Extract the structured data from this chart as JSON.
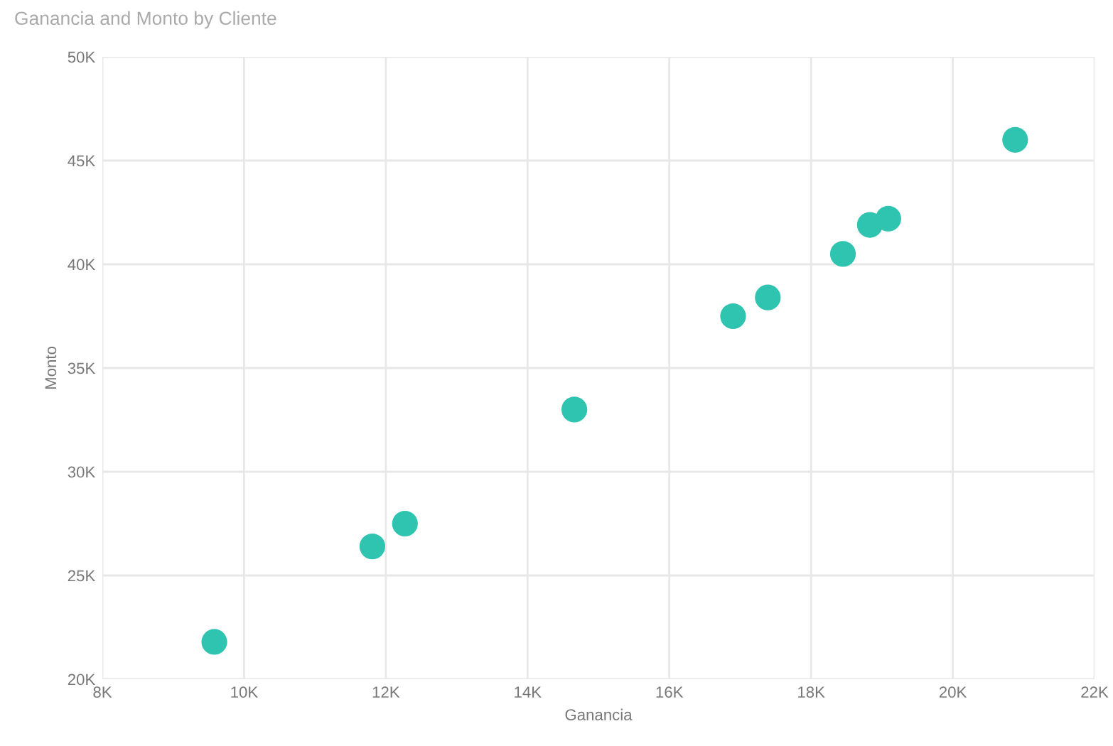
{
  "chart_data": {
    "type": "scatter",
    "title": "Ganancia and Monto by Cliente",
    "xlabel": "Ganancia",
    "ylabel": "Monto",
    "x": [
      9580,
      11810,
      12270,
      14660,
      16900,
      17390,
      18450,
      18830,
      19090,
      20880
    ],
    "values": [
      21800,
      26400,
      27500,
      33000,
      37500,
      38400,
      40500,
      41900,
      42200,
      46000
    ],
    "color": "#2ec4b0",
    "marker": "circle",
    "grid": true,
    "xlim": [
      8000,
      22000
    ],
    "xticks": [
      {
        "value": 8000,
        "label": "8K"
      },
      {
        "value": 10000,
        "label": "10K"
      },
      {
        "value": 12000,
        "label": "12K"
      },
      {
        "value": 14000,
        "label": "14K"
      },
      {
        "value": 16000,
        "label": "16K"
      },
      {
        "value": 18000,
        "label": "18K"
      },
      {
        "value": 20000,
        "label": "20K"
      },
      {
        "value": 22000,
        "label": "22K"
      }
    ],
    "ylim": [
      20000,
      50000
    ],
    "yticks": [
      {
        "value": 20000,
        "label": "20K"
      },
      {
        "value": 25000,
        "label": "25K"
      },
      {
        "value": 30000,
        "label": "30K"
      },
      {
        "value": 35000,
        "label": "35K"
      },
      {
        "value": 40000,
        "label": "40K"
      },
      {
        "value": 45000,
        "label": "45K"
      },
      {
        "value": 50000,
        "label": "50K"
      }
    ]
  }
}
